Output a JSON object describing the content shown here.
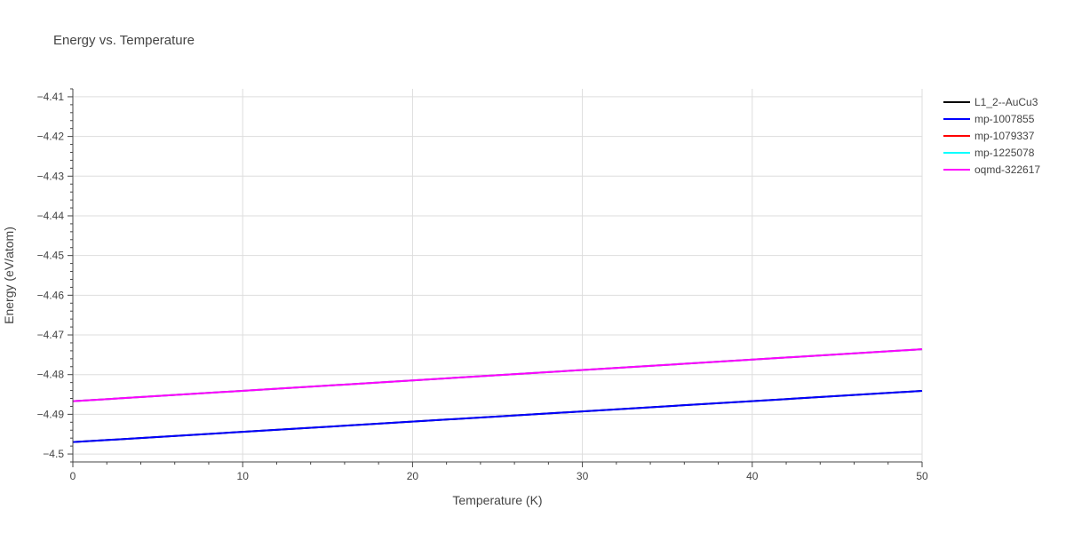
{
  "chart_data": {
    "type": "line",
    "title": "Energy vs. Temperature",
    "xlabel": "Temperature (K)",
    "ylabel": "Energy (eV/atom)",
    "xlim": [
      0,
      50
    ],
    "ylim": [
      -4.502,
      -4.408
    ],
    "x_ticks": [
      0,
      10,
      20,
      30,
      40,
      50
    ],
    "x_tick_labels": [
      "0",
      "10",
      "20",
      "30",
      "40",
      "50"
    ],
    "y_ticks": [
      -4.5,
      -4.49,
      -4.48,
      -4.47,
      -4.46,
      -4.45,
      -4.44,
      -4.43,
      -4.42,
      -4.41
    ],
    "y_tick_labels": [
      "−4.5",
      "−4.49",
      "−4.48",
      "−4.47",
      "−4.46",
      "−4.45",
      "−4.44",
      "−4.43",
      "−4.42",
      "−4.41"
    ],
    "grid": true,
    "legend_position": "top-right",
    "series": [
      {
        "name": "L1_2--AuCu3",
        "color": "#000000",
        "x": [
          0,
          50
        ],
        "y": [
          -4.497,
          -4.4841
        ]
      },
      {
        "name": "mp-1007855",
        "color": "#0000ff",
        "x": [
          0,
          50
        ],
        "y": [
          -4.497,
          -4.4841
        ]
      },
      {
        "name": "mp-1079337",
        "color": "#ff0000",
        "x": [
          0,
          50
        ],
        "y": [
          -4.4867,
          -4.4736
        ]
      },
      {
        "name": "mp-1225078",
        "color": "#00ffff",
        "x": [
          0,
          50
        ],
        "y": [
          -4.4867,
          -4.4736
        ]
      },
      {
        "name": "oqmd-322617",
        "color": "#ff00ff",
        "x": [
          0,
          50
        ],
        "y": [
          -4.4867,
          -4.4736
        ]
      }
    ]
  }
}
